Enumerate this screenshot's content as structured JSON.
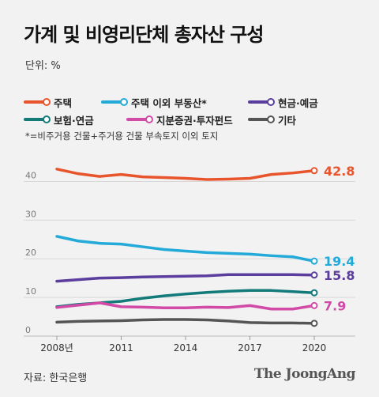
{
  "header": {
    "title": "가계 및 비영리단체 총자산 구성",
    "unit": "단위: %"
  },
  "note": "*=비주거용 건물+주거용 건물 부속토지 이외 토지",
  "footer": {
    "source": "자료: 한국은행",
    "brand": "The JoongAng"
  },
  "chart_data": {
    "type": "line",
    "x": [
      2008,
      2009,
      2010,
      2011,
      2012,
      2013,
      2014,
      2015,
      2016,
      2017,
      2018,
      2019,
      2020
    ],
    "x_tick_values": [
      2008,
      2011,
      2014,
      2017,
      2020
    ],
    "x_tick_labels": [
      "2008년",
      "2011",
      "2014",
      "2017",
      "2020"
    ],
    "y_tick_labels": [
      "0",
      "10",
      "20",
      "30",
      "40"
    ],
    "ylim": [
      0,
      45
    ],
    "grid": "horizontal",
    "series": [
      {
        "name": "주택",
        "color": "#e8552d",
        "end_label": "42.8",
        "values": [
          43.2,
          42.0,
          41.3,
          41.8,
          41.2,
          41.0,
          40.8,
          40.5,
          40.6,
          40.8,
          41.8,
          42.2,
          42.8
        ]
      },
      {
        "name": "주택 이외 부동산*",
        "color": "#23aad8",
        "end_label": "19.4",
        "values": [
          25.8,
          24.6,
          24.0,
          23.8,
          23.1,
          22.4,
          22.0,
          21.6,
          21.4,
          21.2,
          20.8,
          20.5,
          19.4
        ]
      },
      {
        "name": "현금·예금",
        "color": "#5b3d9e",
        "end_label": "15.8",
        "values": [
          14.2,
          14.6,
          15.0,
          15.1,
          15.3,
          15.4,
          15.5,
          15.6,
          15.9,
          15.9,
          15.9,
          15.9,
          15.8
        ]
      },
      {
        "name": "보험·연금",
        "color": "#137a7a",
        "end_label": "",
        "values": [
          7.6,
          8.2,
          8.6,
          9.0,
          9.8,
          10.4,
          10.9,
          11.3,
          11.6,
          11.8,
          11.8,
          11.5,
          11.2
        ]
      },
      {
        "name": "지분증권·투자펀드",
        "color": "#d14aa6",
        "end_label": "7.9",
        "values": [
          7.4,
          8.0,
          8.6,
          7.6,
          7.5,
          7.3,
          7.3,
          7.5,
          7.4,
          7.9,
          7.0,
          7.0,
          7.9
        ]
      },
      {
        "name": "기타",
        "color": "#555555",
        "end_label": "",
        "values": [
          3.6,
          3.8,
          3.9,
          4.0,
          4.2,
          4.3,
          4.3,
          4.2,
          3.9,
          3.5,
          3.4,
          3.4,
          3.3
        ]
      }
    ]
  }
}
